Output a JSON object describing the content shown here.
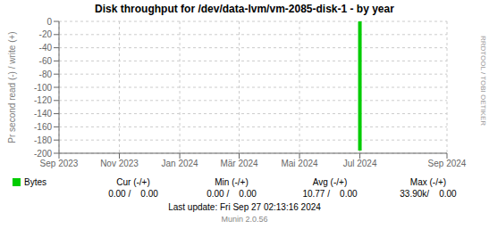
{
  "chart_data": {
    "type": "bar",
    "title": "Disk throughput for /dev/data-lvm/vm-2085-disk-1  -  by year",
    "y_label": "Pr second read (-) / write (+)",
    "x": [
      1719792000
    ],
    "series": [
      {
        "name": "Bytes",
        "color": "#00cc00",
        "values": [
          -196
        ]
      }
    ],
    "xlim": [
      1693526400,
      1727395200
    ],
    "xticks": [
      {
        "value": 1693526400,
        "label": "Sep 2023"
      },
      {
        "value": 1698796800,
        "label": "Nov 2023"
      },
      {
        "value": 1704067200,
        "label": "Jan 2024"
      },
      {
        "value": 1709251200,
        "label": "Mär 2024"
      },
      {
        "value": 1714521600,
        "label": "Mai 2024"
      },
      {
        "value": 1719792000,
        "label": "Jul 2024"
      },
      {
        "value": 1727395200,
        "label": "Sep 2024"
      }
    ],
    "ylim": [
      -200,
      0
    ],
    "yticks": [
      0,
      -20,
      -40,
      -60,
      -80,
      -100,
      -120,
      -140,
      -160,
      -180,
      -200
    ],
    "grid": true,
    "annotations": [
      "Cur (-/+)",
      "Min (-/+)",
      "Avg (-/+)",
      "Max (-/+)",
      "0.00 /    0.00",
      "0.00 /    0.00",
      "10.77 /    0.00",
      "33.90k/    0.00",
      "Last update: Fri Sep 27 02:13:16 2024",
      "Munin 2.0.56",
      "RRDTOOL / TOBI OETIKER"
    ]
  }
}
